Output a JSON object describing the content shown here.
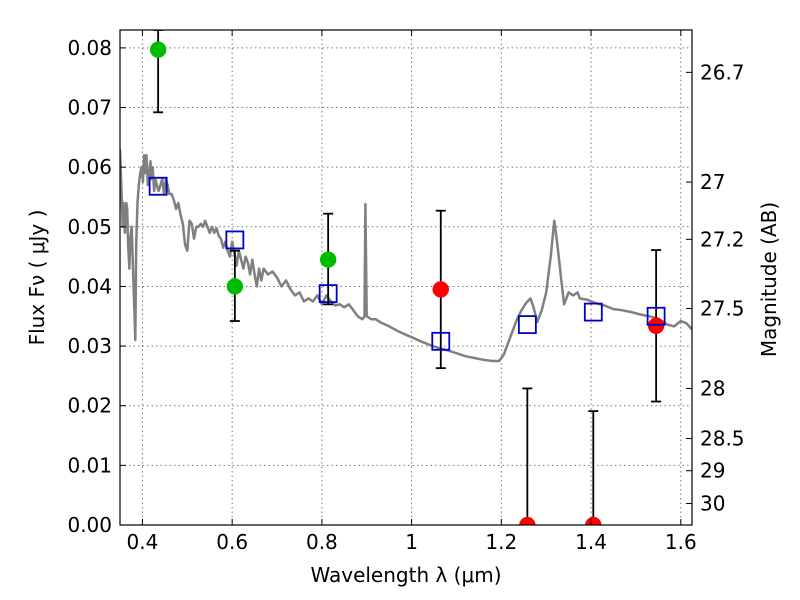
{
  "chart_data": {
    "type": "scatter",
    "xlabel": "Wavelength  λ (μm)",
    "ylabel": "Flux  Fν  ( μJy )",
    "y2label": "Magnitude (AB)",
    "xlim": [
      0.35,
      1.625
    ],
    "ylim": [
      0.0,
      0.083
    ],
    "grid": true,
    "x_ticks": [
      0.4,
      0.6,
      0.8,
      1.0,
      1.2,
      1.4,
      1.6
    ],
    "x_tick_labels": [
      "0.4",
      "0.6",
      "0.8",
      "1",
      "1.2",
      "1.4",
      "1.6"
    ],
    "y_ticks": [
      0.0,
      0.01,
      0.02,
      0.03,
      0.04,
      0.05,
      0.06,
      0.07,
      0.08
    ],
    "y_tick_labels": [
      "0.00",
      "0.01",
      "0.02",
      "0.03",
      "0.04",
      "0.05",
      "0.06",
      "0.07",
      "0.08"
    ],
    "y2_ticks": [
      {
        "label": "26.7",
        "flux": 0.0759
      },
      {
        "label": "27",
        "flux": 0.0575
      },
      {
        "label": "27.2",
        "flux": 0.0479
      },
      {
        "label": "27.5",
        "flux": 0.0363
      },
      {
        "label": "28",
        "flux": 0.0229
      },
      {
        "label": "28.5",
        "flux": 0.0145
      },
      {
        "label": "29",
        "flux": 0.0091
      },
      {
        "label": "30",
        "flux": 0.0036
      }
    ],
    "colors": {
      "model": "#808080",
      "green": "#00bb00",
      "red": "#ff0000",
      "blue": "#0000cc",
      "errorbar": "#000000"
    },
    "series": [
      {
        "kind": "model_sed",
        "points": [
          [
            0.35,
            0.063
          ],
          [
            0.353,
            0.057
          ],
          [
            0.356,
            0.05
          ],
          [
            0.358,
            0.054
          ],
          [
            0.361,
            0.049
          ],
          [
            0.364,
            0.054
          ],
          [
            0.366,
            0.053
          ],
          [
            0.368,
            0.047
          ],
          [
            0.371,
            0.043
          ],
          [
            0.373,
            0.048
          ],
          [
            0.376,
            0.05
          ],
          [
            0.379,
            0.043
          ],
          [
            0.382,
            0.036
          ],
          [
            0.384,
            0.031
          ],
          [
            0.386,
            0.047
          ],
          [
            0.389,
            0.054
          ],
          [
            0.392,
            0.057
          ],
          [
            0.395,
            0.059
          ],
          [
            0.398,
            0.06
          ],
          [
            0.401,
            0.0575
          ],
          [
            0.404,
            0.062
          ],
          [
            0.406,
            0.059
          ],
          [
            0.409,
            0.062
          ],
          [
            0.412,
            0.057
          ],
          [
            0.415,
            0.059
          ],
          [
            0.418,
            0.061
          ],
          [
            0.42,
            0.058
          ],
          [
            0.423,
            0.06
          ],
          [
            0.426,
            0.056
          ],
          [
            0.429,
            0.058
          ],
          [
            0.432,
            0.057
          ],
          [
            0.436,
            0.056
          ],
          [
            0.44,
            0.057
          ],
          [
            0.444,
            0.058
          ],
          [
            0.448,
            0.0555
          ],
          [
            0.452,
            0.058
          ],
          [
            0.456,
            0.057
          ],
          [
            0.46,
            0.0555
          ],
          [
            0.465,
            0.0555
          ],
          [
            0.47,
            0.0545
          ],
          [
            0.475,
            0.053
          ],
          [
            0.48,
            0.054
          ],
          [
            0.485,
            0.052
          ],
          [
            0.49,
            0.0505
          ],
          [
            0.495,
            0.047
          ],
          [
            0.5,
            0.046
          ],
          [
            0.505,
            0.051
          ],
          [
            0.51,
            0.0505
          ],
          [
            0.515,
            0.048
          ],
          [
            0.52,
            0.05
          ],
          [
            0.525,
            0.05
          ],
          [
            0.53,
            0.0505
          ],
          [
            0.535,
            0.05
          ],
          [
            0.54,
            0.051
          ],
          [
            0.545,
            0.05
          ],
          [
            0.55,
            0.049
          ],
          [
            0.555,
            0.05
          ],
          [
            0.56,
            0.049
          ],
          [
            0.565,
            0.0498
          ],
          [
            0.57,
            0.0485
          ],
          [
            0.575,
            0.048
          ],
          [
            0.58,
            0.0465
          ],
          [
            0.585,
            0.0475
          ],
          [
            0.59,
            0.046
          ],
          [
            0.595,
            0.045
          ],
          [
            0.6,
            0.0475
          ],
          [
            0.605,
            0.0455
          ],
          [
            0.61,
            0.0435
          ],
          [
            0.615,
            0.046
          ],
          [
            0.62,
            0.0445
          ],
          [
            0.625,
            0.043
          ],
          [
            0.63,
            0.045
          ],
          [
            0.635,
            0.044
          ],
          [
            0.64,
            0.042
          ],
          [
            0.645,
            0.0445
          ],
          [
            0.65,
            0.042
          ],
          [
            0.655,
            0.04
          ],
          [
            0.66,
            0.043
          ],
          [
            0.665,
            0.041
          ],
          [
            0.67,
            0.043
          ],
          [
            0.68,
            0.042
          ],
          [
            0.69,
            0.0425
          ],
          [
            0.7,
            0.0415
          ],
          [
            0.71,
            0.04
          ],
          [
            0.72,
            0.041
          ],
          [
            0.73,
            0.0395
          ],
          [
            0.74,
            0.0385
          ],
          [
            0.75,
            0.039
          ],
          [
            0.76,
            0.0375
          ],
          [
            0.77,
            0.038
          ],
          [
            0.78,
            0.0375
          ],
          [
            0.79,
            0.0385
          ],
          [
            0.8,
            0.037
          ],
          [
            0.81,
            0.0385
          ],
          [
            0.82,
            0.0375
          ],
          [
            0.83,
            0.0368
          ],
          [
            0.84,
            0.037
          ],
          [
            0.85,
            0.0365
          ],
          [
            0.86,
            0.037
          ],
          [
            0.87,
            0.036
          ],
          [
            0.88,
            0.035
          ],
          [
            0.89,
            0.0345
          ],
          [
            0.895,
            0.035
          ],
          [
            0.897,
            0.0538
          ],
          [
            0.9,
            0.035
          ],
          [
            0.91,
            0.0345
          ],
          [
            0.92,
            0.0345
          ],
          [
            0.93,
            0.034
          ],
          [
            0.95,
            0.0333
          ],
          [
            0.97,
            0.0325
          ],
          [
            0.99,
            0.0318
          ],
          [
            1.0,
            0.0315
          ],
          [
            1.02,
            0.0308
          ],
          [
            1.04,
            0.0302
          ],
          [
            1.06,
            0.0297
          ],
          [
            1.08,
            0.0293
          ],
          [
            1.1,
            0.0288
          ],
          [
            1.12,
            0.0283
          ],
          [
            1.14,
            0.028
          ],
          [
            1.16,
            0.0277
          ],
          [
            1.18,
            0.0275
          ],
          [
            1.195,
            0.0275
          ],
          [
            1.205,
            0.0285
          ],
          [
            1.215,
            0.0305
          ],
          [
            1.225,
            0.0325
          ],
          [
            1.235,
            0.0345
          ],
          [
            1.245,
            0.036
          ],
          [
            1.255,
            0.0372
          ],
          [
            1.265,
            0.038
          ],
          [
            1.272,
            0.0365
          ],
          [
            1.28,
            0.034
          ],
          [
            1.29,
            0.036
          ],
          [
            1.3,
            0.039
          ],
          [
            1.31,
            0.045
          ],
          [
            1.318,
            0.051
          ],
          [
            1.325,
            0.047
          ],
          [
            1.333,
            0.0415
          ],
          [
            1.34,
            0.037
          ],
          [
            1.35,
            0.039
          ],
          [
            1.36,
            0.0385
          ],
          [
            1.37,
            0.039
          ],
          [
            1.375,
            0.038
          ],
          [
            1.39,
            0.0378
          ],
          [
            1.41,
            0.0372
          ],
          [
            1.43,
            0.0368
          ],
          [
            1.45,
            0.0362
          ],
          [
            1.47,
            0.036
          ],
          [
            1.49,
            0.0357
          ],
          [
            1.51,
            0.0353
          ],
          [
            1.53,
            0.035
          ],
          [
            1.55,
            0.0346
          ],
          [
            1.57,
            0.0336
          ],
          [
            1.585,
            0.0333
          ],
          [
            1.6,
            0.0342
          ],
          [
            1.613,
            0.0338
          ],
          [
            1.625,
            0.0328
          ]
        ]
      },
      {
        "kind": "observed_green",
        "points": [
          {
            "x": 0.435,
            "y": 0.0797,
            "err_low": 0.0692,
            "err_high": 0.083
          },
          {
            "x": 0.606,
            "y": 0.04,
            "err_low": 0.0342,
            "err_high": 0.046
          },
          {
            "x": 0.814,
            "y": 0.0445,
            "err_low": 0.037,
            "err_high": 0.0522
          }
        ]
      },
      {
        "kind": "observed_red",
        "points": [
          {
            "x": 1.065,
            "y": 0.0395,
            "err_low": 0.0263,
            "err_high": 0.0527
          },
          {
            "x": 1.258,
            "y": 0.0,
            "err_low": 0.0,
            "err_high": 0.0229
          },
          {
            "x": 1.405,
            "y": 0.0,
            "err_low": 0.0,
            "err_high": 0.0191
          },
          {
            "x": 1.545,
            "y": 0.0334,
            "err_low": 0.0207,
            "err_high": 0.0461
          }
        ]
      },
      {
        "kind": "model_photometry",
        "points": [
          {
            "x": 0.435,
            "y": 0.0568
          },
          {
            "x": 0.606,
            "y": 0.0478
          },
          {
            "x": 0.814,
            "y": 0.0388
          },
          {
            "x": 1.065,
            "y": 0.0308
          },
          {
            "x": 1.258,
            "y": 0.0336
          },
          {
            "x": 1.405,
            "y": 0.0357
          },
          {
            "x": 1.545,
            "y": 0.035
          }
        ]
      }
    ]
  }
}
